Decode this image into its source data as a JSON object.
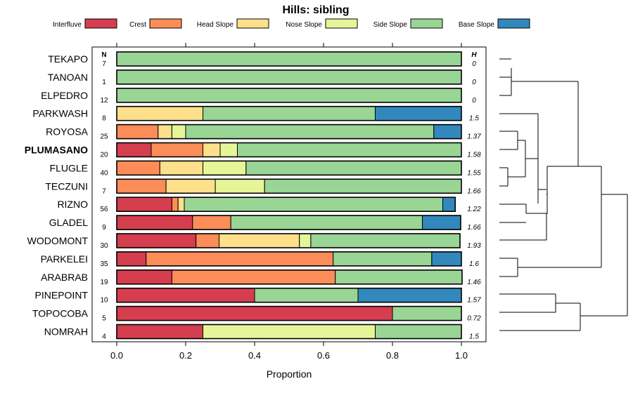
{
  "chart_data": {
    "type": "bar",
    "orientation": "horizontal",
    "stacked": true,
    "title": "Hills: sibling",
    "xlabel": "Proportion",
    "xlim": [
      0,
      1
    ],
    "xticks": [
      "0.0",
      "0.2",
      "0.4",
      "0.6",
      "0.8",
      "1.0"
    ],
    "n_header": "N",
    "h_header": "H",
    "highlighted": "PLUMASANO",
    "legend": [
      {
        "name": "Interfluve",
        "color": "#D53E4F"
      },
      {
        "name": "Crest",
        "color": "#FC8D59"
      },
      {
        "name": "Head Slope",
        "color": "#FEE08B"
      },
      {
        "name": "Nose Slope",
        "color": "#E6F598"
      },
      {
        "name": "Side Slope",
        "color": "#99D594"
      },
      {
        "name": "Base Slope",
        "color": "#3288BD"
      }
    ],
    "categories": [
      "TEKAPO",
      "TANOAN",
      "ELPEDRO",
      "PARKWASH",
      "ROYOSA",
      "PLUMASANO",
      "FLUGLE",
      "TECZUNI",
      "RIZNO",
      "GLADEL",
      "WODOMONT",
      "PARKELEI",
      "ARABRAB",
      "PINEPOINT",
      "TOPOCOBA",
      "NOMRAH"
    ],
    "n": [
      "7",
      "1",
      "12",
      "8",
      "25",
      "20",
      "40",
      "7",
      "56",
      "9",
      "30",
      "35",
      "19",
      "10",
      "5",
      "4"
    ],
    "h": [
      "0",
      "0",
      "0",
      "1.5",
      "1.37",
      "1.58",
      "1.55",
      "1.66",
      "1.22",
      "1.66",
      "1.93",
      "1.6",
      "1.46",
      "1.57",
      "0.72",
      "1.5"
    ],
    "series": [
      {
        "name": "Interfluve",
        "values": [
          0,
          0,
          0,
          0,
          0,
          0.1,
          0,
          0,
          0.16,
          0.22,
          0.23,
          0.085,
          0.16,
          0.4,
          0.8,
          0.25
        ]
      },
      {
        "name": "Crest",
        "values": [
          0,
          0,
          0,
          0,
          0.12,
          0.15,
          0.125,
          0.143,
          0.018,
          0.111,
          0.067,
          0.543,
          0.474,
          0,
          0,
          0
        ]
      },
      {
        "name": "Head Slope",
        "values": [
          0,
          0,
          0,
          0.25,
          0.04,
          0.05,
          0.125,
          0.143,
          0.018,
          0,
          0.233,
          0,
          0,
          0,
          0,
          0
        ]
      },
      {
        "name": "Nose Slope",
        "values": [
          0,
          0,
          0,
          0,
          0.04,
          0.05,
          0.125,
          0.143,
          0,
          0,
          0.033,
          0,
          0,
          0,
          0,
          0.5
        ]
      },
      {
        "name": "Side Slope",
        "values": [
          1,
          1,
          1,
          0.5,
          0.72,
          0.65,
          0.625,
          0.571,
          0.75,
          0.556,
          0.433,
          0.286,
          0.368,
          0.3,
          0.2,
          0.25
        ]
      },
      {
        "name": "Base Slope",
        "values": [
          0,
          0,
          0,
          0.25,
          0.08,
          0,
          0,
          0,
          0.036,
          0.111,
          0,
          0.086,
          0,
          0.3,
          0,
          0
        ]
      }
    ],
    "dendrogram": true
  }
}
